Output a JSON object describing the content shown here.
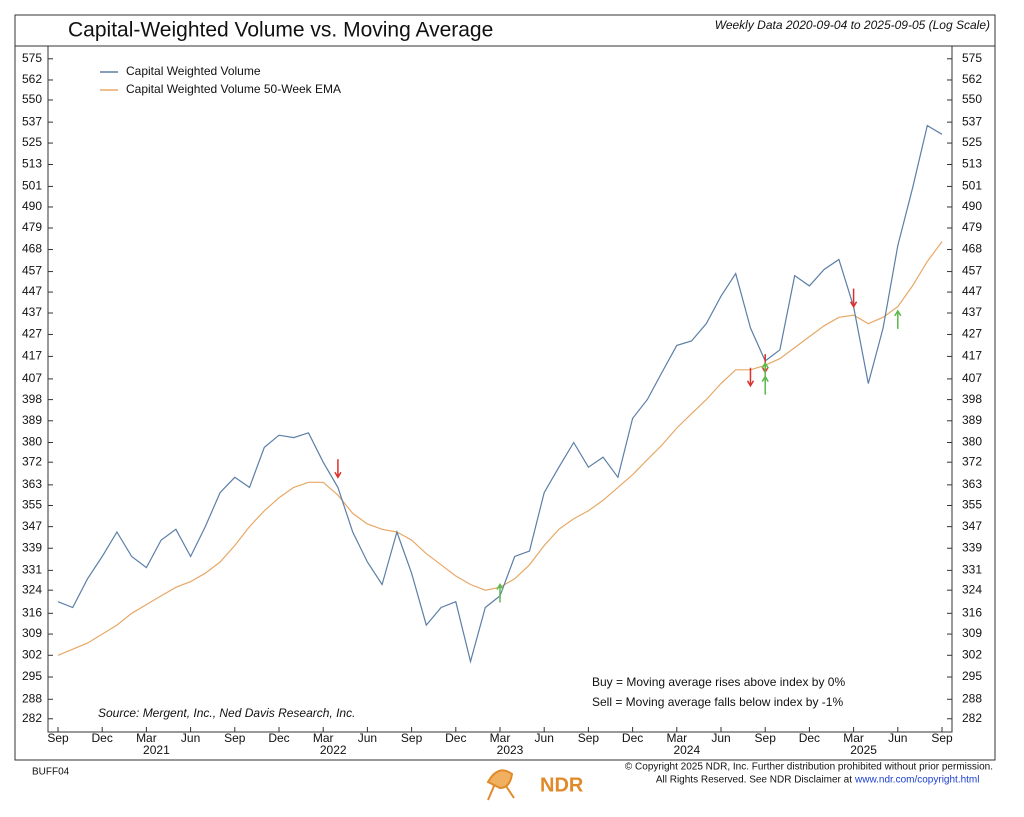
{
  "chart_data": {
    "type": "line",
    "title": "Capital-Weighted Volume vs. Moving Average",
    "subtitle": "Weekly Data 2020-09-04 to 2025-09-05 (Log Scale)",
    "log_scale": true,
    "x": [
      "2020-09",
      "2020-10",
      "2020-11",
      "2020-12",
      "2021-01",
      "2021-02",
      "2021-03",
      "2021-04",
      "2021-05",
      "2021-06",
      "2021-07",
      "2021-08",
      "2021-09",
      "2021-10",
      "2021-11",
      "2021-12",
      "2022-01",
      "2022-02",
      "2022-03",
      "2022-04",
      "2022-05",
      "2022-06",
      "2022-07",
      "2022-08",
      "2022-09",
      "2022-10",
      "2022-11",
      "2022-12",
      "2023-01",
      "2023-02",
      "2023-03",
      "2023-04",
      "2023-05",
      "2023-06",
      "2023-07",
      "2023-08",
      "2023-09",
      "2023-10",
      "2023-11",
      "2023-12",
      "2024-01",
      "2024-02",
      "2024-03",
      "2024-04",
      "2024-05",
      "2024-06",
      "2024-07",
      "2024-08",
      "2024-09",
      "2024-10",
      "2024-11",
      "2024-12",
      "2025-01",
      "2025-02",
      "2025-03",
      "2025-04",
      "2025-05",
      "2025-06",
      "2025-07",
      "2025-08",
      "2025-09"
    ],
    "series": [
      {
        "name": "Capital Weighted Volume",
        "color": "#5b7fa6",
        "values": [
          320,
          318,
          328,
          336,
          345,
          336,
          332,
          342,
          346,
          336,
          347,
          360,
          366,
          362,
          378,
          383,
          382,
          384,
          372,
          362,
          345,
          334,
          326,
          345,
          330,
          312,
          318,
          320,
          300,
          318,
          322,
          336,
          338,
          360,
          370,
          380,
          370,
          374,
          366,
          390,
          398,
          410,
          422,
          424,
          432,
          445,
          456,
          430,
          415,
          420,
          455,
          450,
          458,
          463,
          440,
          405,
          430,
          470,
          500,
          535,
          530
        ]
      },
      {
        "name": "Capital Weighted Volume 50-Week EMA",
        "color": "#e8a866",
        "values": [
          302,
          304,
          306,
          309,
          312,
          316,
          319,
          322,
          325,
          327,
          330,
          334,
          340,
          347,
          353,
          358,
          362,
          364,
          364,
          359,
          352,
          348,
          346,
          345,
          342,
          337,
          333,
          329,
          326,
          324,
          325,
          328,
          333,
          340,
          346,
          350,
          353,
          357,
          362,
          367,
          373,
          379,
          386,
          392,
          398,
          405,
          411,
          411,
          413,
          416,
          421,
          426,
          431,
          435,
          436,
          432,
          435,
          440,
          450,
          462,
          472
        ]
      }
    ],
    "sell_signals": {
      "color": "#d9322b",
      "x": [
        "2022-04",
        "2024-08",
        "2024-09",
        "2025-03"
      ],
      "values": [
        366,
        404,
        410,
        440
      ]
    },
    "buy_signals": {
      "color": "#5cb84a",
      "x": [
        "2023-03",
        "2024-09",
        "2024-09",
        "2025-06"
      ],
      "values": [
        326,
        408,
        414,
        438
      ]
    },
    "xlim": [
      "2020-09",
      "2025-09"
    ],
    "xticks": [
      {
        "value": "2020-09",
        "label": "Sep"
      },
      {
        "value": "2020-12",
        "label": "Dec"
      },
      {
        "value": "2021-03",
        "label": "Mar"
      },
      {
        "value": "2021-06",
        "label": "Jun"
      },
      {
        "value": "2021-09",
        "label": "Sep"
      },
      {
        "value": "2021-12",
        "label": "Dec"
      },
      {
        "value": "2022-03",
        "label": "Mar"
      },
      {
        "value": "2022-06",
        "label": "Jun"
      },
      {
        "value": "2022-09",
        "label": "Sep"
      },
      {
        "value": "2022-12",
        "label": "Dec"
      },
      {
        "value": "2023-03",
        "label": "Mar"
      },
      {
        "value": "2023-06",
        "label": "Jun"
      },
      {
        "value": "2023-09",
        "label": "Sep"
      },
      {
        "value": "2023-12",
        "label": "Dec"
      },
      {
        "value": "2024-03",
        "label": "Mar"
      },
      {
        "value": "2024-06",
        "label": "Jun"
      },
      {
        "value": "2024-09",
        "label": "Sep"
      },
      {
        "value": "2024-12",
        "label": "Dec"
      },
      {
        "value": "2025-03",
        "label": "Mar"
      },
      {
        "value": "2025-06",
        "label": "Jun"
      },
      {
        "value": "2025-09",
        "label": "Sep"
      }
    ],
    "year_ticks": [
      {
        "value": "2021-03",
        "label": "2021"
      },
      {
        "value": "2022-03",
        "label": "2022"
      },
      {
        "value": "2023-03",
        "label": "2023"
      },
      {
        "value": "2024-03",
        "label": "2024"
      },
      {
        "value": "2025-03",
        "label": "2025"
      }
    ],
    "ylim": [
      278,
      583
    ],
    "yticks": [
      282,
      288,
      295,
      302,
      309,
      316,
      324,
      331,
      339,
      347,
      355,
      363,
      372,
      380,
      389,
      398,
      407,
      417,
      427,
      437,
      447,
      457,
      468,
      479,
      490,
      501,
      513,
      525,
      537,
      550,
      562,
      575
    ],
    "legend": "top-left",
    "source": "Source:   Mergent, Inc., Ned Davis Research, Inc.",
    "notes": [
      "Buy = Moving average rises above index by 0%",
      "Sell = Moving average falls below index by -1%"
    ],
    "code": "BUFF04",
    "copyright": [
      "© Copyright 2025 NDR, Inc. Further distribution prohibited without prior permission.",
      "All Rights Reserved. See NDR Disclaimer at"
    ],
    "link": "www.ndr.com/copyright.html",
    "logo": "NDR"
  }
}
